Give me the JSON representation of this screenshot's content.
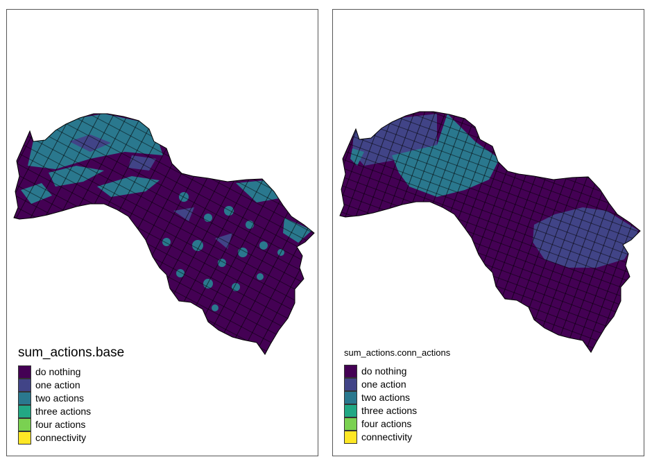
{
  "panels": [
    {
      "legend_title": "sum_actions.base",
      "legend": [
        {
          "label": "do nothing",
          "color": "#440154"
        },
        {
          "label": "one action",
          "color": "#414487"
        },
        {
          "label": "two actions",
          "color": "#2a788e"
        },
        {
          "label": "three actions",
          "color": "#22a884"
        },
        {
          "label": "four actions",
          "color": "#7ad151"
        },
        {
          "label": "connectivity",
          "color": "#fde725"
        }
      ]
    },
    {
      "legend_title": "sum_actions.conn_actions",
      "legend": [
        {
          "label": "do nothing",
          "color": "#440154"
        },
        {
          "label": "one action",
          "color": "#414487"
        },
        {
          "label": "two actions",
          "color": "#2a788e"
        },
        {
          "label": "three actions",
          "color": "#22a884"
        },
        {
          "label": "four actions",
          "color": "#7ad151"
        },
        {
          "label": "connectivity",
          "color": "#fde725"
        }
      ]
    }
  ],
  "colors": {
    "do_nothing": "#440154",
    "one_action": "#414487",
    "two_actions": "#2a788e",
    "outline": "#000000",
    "panel_border": "#555555"
  }
}
